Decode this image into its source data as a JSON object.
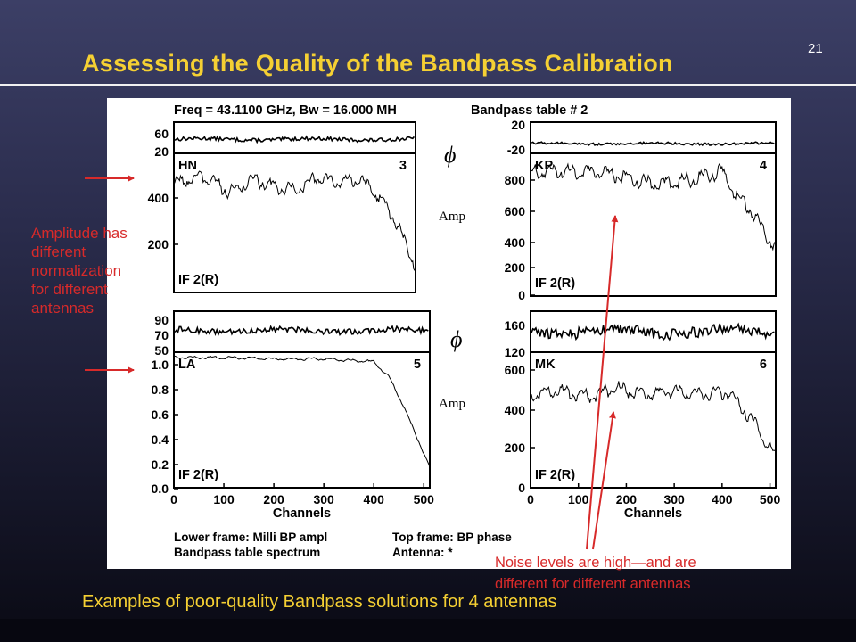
{
  "slide": {
    "number": "21",
    "title": "Assessing the Quality of the Bandpass Calibration",
    "caption": "Examples of poor-quality Bandpass solutions for 4 antennas"
  },
  "annotations": {
    "amplitude_note": [
      "Amplitude has",
      "different",
      "normalization",
      "for different",
      "antennas"
    ],
    "noise_note": [
      "Noise levels are high—and are",
      "different for different antennas"
    ],
    "phi_symbol": "ϕ",
    "amp_label": "Amp"
  },
  "colors": {
    "title": "#f5d033",
    "annotation": "#d72a2a",
    "plot_line": "#000000",
    "panel": "#ffffff"
  },
  "plot_header": {
    "freq": "Freq = 43.1100 GHz, Bw = 16.000 MH",
    "table": "Bandpass table # 2"
  },
  "plot_footer": {
    "lower_frame": "Lower frame: Milli BP ampl",
    "top_frame": "Top frame: BP phase",
    "spectrum": "Bandpass table spectrum",
    "antenna": "Antenna: *"
  },
  "chart_data": [
    {
      "type": "line",
      "antenna": "HN",
      "panel_number": "3",
      "if_label": "IF 2(R)",
      "xlim": [
        0,
        512
      ],
      "xticks": [],
      "phase": {
        "yticks": [
          "60",
          "20"
        ],
        "ylim": [
          0,
          100
        ],
        "mean": 45,
        "noise": 6
      },
      "amplitude": {
        "yticks": [
          "400",
          "200"
        ],
        "ytick_values": [
          400,
          200
        ],
        "ylim": [
          70,
          500
        ],
        "profile": [
          [
            0,
            405
          ],
          [
            60,
            430
          ],
          [
            120,
            380
          ],
          [
            170,
            420
          ],
          [
            220,
            395
          ],
          [
            260,
            385
          ],
          [
            300,
            425
          ],
          [
            350,
            410
          ],
          [
            390,
            420
          ],
          [
            420,
            390
          ],
          [
            445,
            345
          ],
          [
            470,
            290
          ],
          [
            490,
            225
          ],
          [
            512,
            150
          ]
        ]
      }
    },
    {
      "type": "line",
      "antenna": "KP",
      "panel_number": "4",
      "if_label": "IF 2(R)",
      "xlim": [
        0,
        512
      ],
      "xticks": [],
      "phase": {
        "yticks": [
          "20",
          "-20"
        ],
        "ylim": [
          -45,
          35
        ],
        "mean": -20,
        "noise": 3
      },
      "amplitude": {
        "yticks": [
          "800",
          "600",
          "400",
          "200",
          "0"
        ],
        "ytick_values": [
          800,
          600,
          400,
          200,
          0
        ],
        "ylim": [
          0,
          870
        ],
        "profile": [
          [
            0,
            760
          ],
          [
            80,
            760
          ],
          [
            150,
            755
          ],
          [
            200,
            720
          ],
          [
            260,
            680
          ],
          [
            320,
            700
          ],
          [
            370,
            735
          ],
          [
            400,
            760
          ],
          [
            430,
            610
          ],
          [
            460,
            520
          ],
          [
            490,
            380
          ],
          [
            512,
            300
          ]
        ]
      }
    },
    {
      "type": "line",
      "antenna": "LA",
      "panel_number": "5",
      "if_label": "IF 2(R)",
      "xlim": [
        0,
        512
      ],
      "xticks": [
        "0",
        "100",
        "200",
        "300",
        "400",
        "500"
      ],
      "xtick_values": [
        0,
        100,
        200,
        300,
        400,
        500
      ],
      "xlabel": "Channels",
      "phase": {
        "yticks": [
          "90",
          "70",
          "50"
        ],
        "ylim": [
          45,
          100
        ],
        "mean": 74,
        "noise": 4
      },
      "amplitude": {
        "yticks": [
          "1.0",
          "0.8",
          "0.6",
          "0.4",
          "0.2",
          "0.0"
        ],
        "ytick_values": [
          1.0,
          0.8,
          0.6,
          0.4,
          0.2,
          0.0
        ],
        "ylim": [
          0,
          1.0
        ],
        "profile": [
          [
            0,
            0.96
          ],
          [
            100,
            0.96
          ],
          [
            200,
            0.95
          ],
          [
            300,
            0.95
          ],
          [
            400,
            0.93
          ],
          [
            430,
            0.82
          ],
          [
            460,
            0.6
          ],
          [
            490,
            0.34
          ],
          [
            512,
            0.15
          ]
        ]
      }
    },
    {
      "type": "line",
      "antenna": "MK",
      "panel_number": "6",
      "if_label": "IF 2(R)",
      "xlim": [
        0,
        512
      ],
      "xticks": [
        "0",
        "100",
        "200",
        "300",
        "400",
        "500"
      ],
      "xtick_values": [
        0,
        100,
        200,
        300,
        400,
        500
      ],
      "xlabel": "Channels",
      "phase": {
        "yticks": [
          "160",
          "120"
        ],
        "ylim": [
          105,
          185
        ],
        "mean": 145,
        "noise": 11
      },
      "amplitude": {
        "yticks": [
          "600",
          "400",
          "200",
          "0"
        ],
        "ytick_values": [
          600,
          400,
          200,
          0
        ],
        "ylim": [
          0,
          640
        ],
        "profile": [
          [
            0,
            440
          ],
          [
            60,
            460
          ],
          [
            120,
            430
          ],
          [
            180,
            470
          ],
          [
            240,
            440
          ],
          [
            300,
            460
          ],
          [
            360,
            440
          ],
          [
            410,
            450
          ],
          [
            440,
            380
          ],
          [
            470,
            300
          ],
          [
            495,
            200
          ],
          [
            512,
            140
          ]
        ]
      }
    }
  ]
}
